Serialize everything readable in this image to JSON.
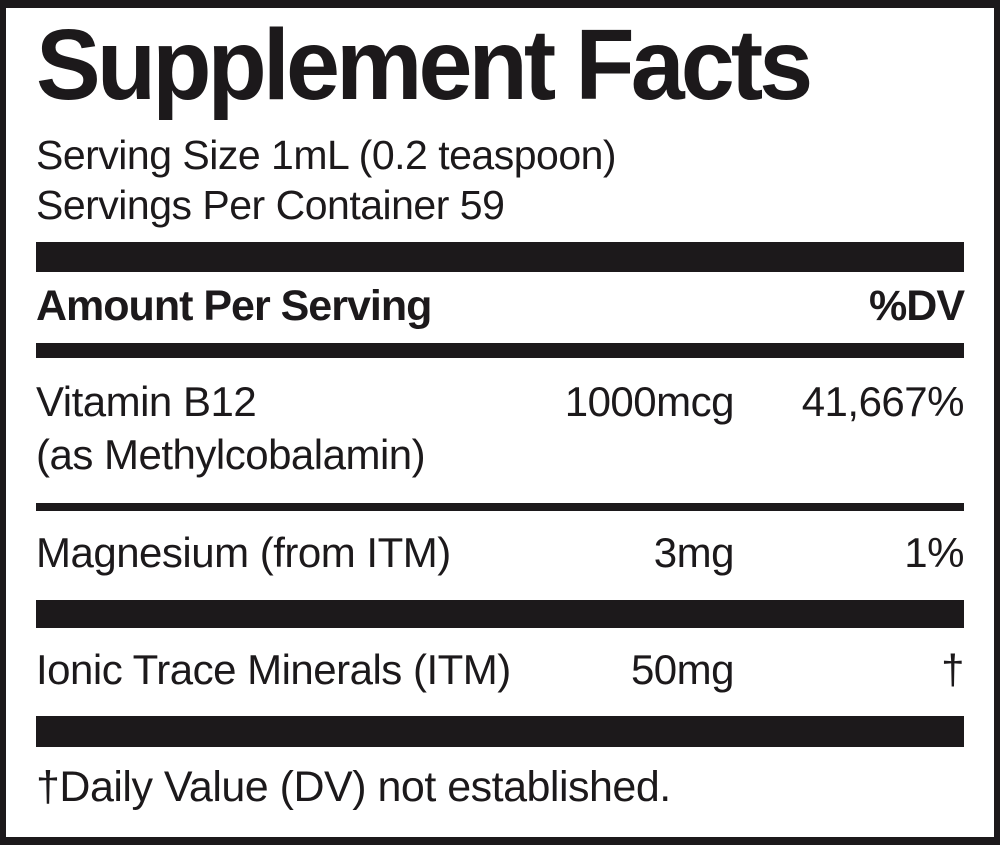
{
  "colors": {
    "ink": "#1c191b",
    "background": "#ffffff"
  },
  "panel": {
    "title": "Supplement Facts",
    "serving_info": {
      "serving_size": "Serving Size 1mL (0.2 teaspoon)",
      "servings_per_container": "Servings Per Container 59"
    },
    "table": {
      "header": {
        "amount_label": "Amount Per Serving",
        "dv_label": "%DV"
      },
      "rows": [
        {
          "name": "Vitamin B12",
          "name_note": "(as Methylcobalamin)",
          "amount": "1000mcg",
          "dv": "41,667%"
        },
        {
          "name": "Magnesium (from ITM)",
          "amount": "3mg",
          "dv": "1%"
        },
        {
          "name": "Ionic Trace Minerals (ITM)",
          "amount": "50mg",
          "dv": "†"
        }
      ],
      "footnote": "†Daily Value (DV) not established."
    }
  }
}
